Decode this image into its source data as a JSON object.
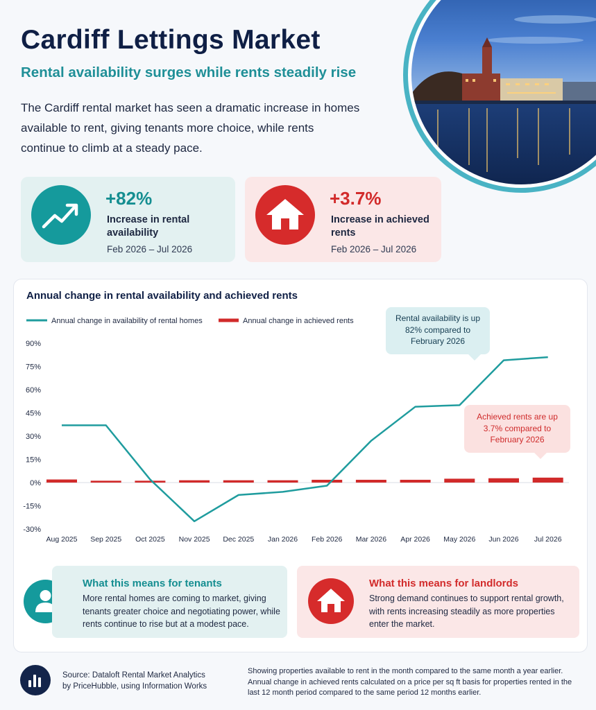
{
  "header": {
    "title": "Cardiff Lettings Market",
    "subtitle": "Rental availability surges while rents steadily rise",
    "intro": "The Cardiff rental market has seen a dramatic increase in homes available to rent, giving tenants more choice, while rents continue to climb at a steady pace."
  },
  "stats": [
    {
      "value": "+82%",
      "label": "Increase in rental availability",
      "period": "Feb 2026 – Jul 2026",
      "icon": "trend-up-icon",
      "color": "#159a9c"
    },
    {
      "value": "+3.7%",
      "label": "Increase in achieved rents",
      "period": "Feb 2026 – Jul 2026",
      "icon": "house-icon",
      "color": "#d62b2b"
    }
  ],
  "chart_data": {
    "type": "line+bar",
    "title": "Annual change in rental availability and achieved rents",
    "categories": [
      "Aug 2025",
      "Sep 2025",
      "Oct 2025",
      "Nov 2025",
      "Dec 2025",
      "Jan 2026",
      "Feb 2026",
      "Mar 2026",
      "Apr 2026",
      "May 2026",
      "Jun 2026",
      "Jul 2026"
    ],
    "series": [
      {
        "name": "Annual change in availability of rental homes",
        "type": "line",
        "color": "#1f9c9e",
        "values": [
          37,
          37,
          2,
          -25,
          -8,
          -6,
          -2,
          27,
          49,
          50,
          79,
          81
        ]
      },
      {
        "name": "Annual change in achieved rents",
        "type": "bar",
        "color": "#d12a2a",
        "values": [
          2.0,
          1.2,
          1.2,
          1.5,
          1.5,
          1.5,
          1.8,
          1.8,
          1.8,
          2.5,
          2.8,
          3.2
        ]
      }
    ],
    "yticks": [
      "90%",
      "75%",
      "60%",
      "45%",
      "30%",
      "15%",
      "0%",
      "-15%",
      "-30%"
    ],
    "ylim": [
      -30,
      90
    ],
    "legend": "top-left",
    "grid": false
  },
  "callouts": {
    "availability": "Rental availability is up 82% compared to February 2026",
    "rents": "Achieved rents are up 3.7% compared to February 2026"
  },
  "tenants": {
    "heading": "What this means for tenants",
    "body": "More rental homes are coming to market, giving tenants greater choice and negotiating power, while rents continue to rise but at a modest pace."
  },
  "landlords": {
    "heading": "What this means for landlords",
    "body": "Strong demand continues to support rental growth, with rents increasing steadily as more properties enter the market."
  },
  "footer": {
    "source": "Source: Dataloft Rental Market Analytics by PriceHubble, using Information Works",
    "note": "Showing properties available to rent in the month compared to the same month a year earlier. Annual change in achieved rents calculated on a price per sq ft basis for properties rented in the last 12 month period compared to the same period 12 months earlier."
  }
}
